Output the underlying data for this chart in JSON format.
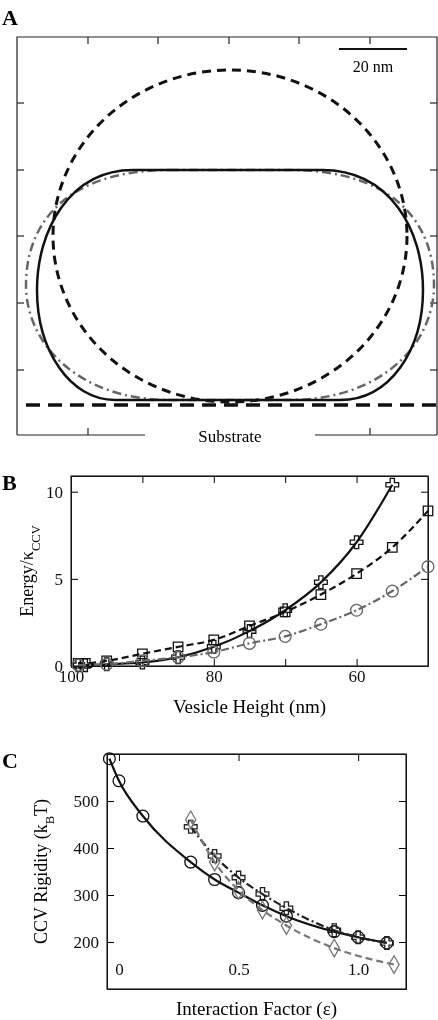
{
  "chart_data": [
    {
      "type": "other",
      "title": "A",
      "annotations": [
        "20 nm",
        "Substrate"
      ]
    },
    {
      "type": "line",
      "title": "B",
      "xlabel": "Vesicle Height (nm)",
      "ylabel": "Energy/κ$_{CCV}$",
      "xlim": [
        100,
        50
      ],
      "ylim": [
        0,
        10.9
      ],
      "xticks": [
        100,
        {
          "value": 90,
          "label": null
        },
        80,
        {
          "value": 70,
          "label": null
        },
        60
      ],
      "yticks": [
        0,
        5,
        10
      ],
      "grid": false,
      "series": [
        {
          "color": "#111111",
          "line_style": "solid",
          "marker": "cross",
          "x": [
            99,
            98,
            95,
            90,
            85,
            80,
            75,
            70,
            65,
            60,
            55
          ],
          "values": [
            0.05,
            0.05,
            0.1,
            0.2,
            0.5,
            1.1,
            2.0,
            3.2,
            4.8,
            7.1,
            10.4
          ]
        },
        {
          "color": "#111111",
          "line_style": "dashed",
          "marker": "square",
          "x": [
            99,
            98,
            95,
            90,
            85,
            80,
            75,
            70,
            65,
            60,
            55,
            50
          ],
          "values": [
            0.15,
            0.15,
            0.3,
            0.7,
            1.1,
            1.5,
            2.3,
            3.1,
            4.1,
            5.3,
            6.8,
            8.9
          ]
        },
        {
          "color": "#666666",
          "line_style": "dashdot",
          "marker": "circle",
          "x": [
            99,
            95,
            90,
            85,
            80,
            75,
            70,
            65,
            60,
            55,
            50
          ],
          "values": [
            0.05,
            0.1,
            0.3,
            0.5,
            0.8,
            1.3,
            1.7,
            2.4,
            3.2,
            4.3,
            5.7
          ]
        }
      ]
    },
    {
      "type": "line",
      "title": "C",
      "xlabel": "Interaction Factor (ε)",
      "ylabel": "CCV Rigidity (k$_{B}$T)",
      "xlim": [
        -0.05,
        1.2
      ],
      "ylim": [
        100,
        600
      ],
      "xticks": [
        {
          "value": 0,
          "label": "0"
        },
        0.5,
        {
          "value": 1,
          "label": "1.0"
        }
      ],
      "yticks": [
        200,
        300,
        400,
        500
      ],
      "grid": false,
      "series": [
        {
          "color": "#111111",
          "line_style": "solid",
          "marker": "circle",
          "x": [
            -0.04,
            0,
            0.1,
            0.3,
            0.4,
            0.5,
            0.6,
            0.7,
            0.9,
            1.0,
            1.12
          ],
          "values": [
            590,
            543,
            468,
            370,
            333,
            305,
            278,
            255,
            222,
            210,
            198
          ]
        },
        {
          "color": "#222222",
          "line_style": "dashdot",
          "marker": "cross",
          "x": [
            0.3,
            0.4,
            0.5,
            0.6,
            0.7,
            0.9,
            1.0,
            1.12
          ],
          "values": [
            445,
            383,
            337,
            302,
            272,
            225,
            210,
            198
          ]
        },
        {
          "color": "#777777",
          "line_style": "dashed",
          "marker": "diamond",
          "x": [
            0.3,
            0.4,
            0.5,
            0.6,
            0.7,
            0.9,
            1.15
          ],
          "values": [
            460,
            370,
            310,
            268,
            235,
            187,
            152
          ]
        }
      ]
    }
  ]
}
